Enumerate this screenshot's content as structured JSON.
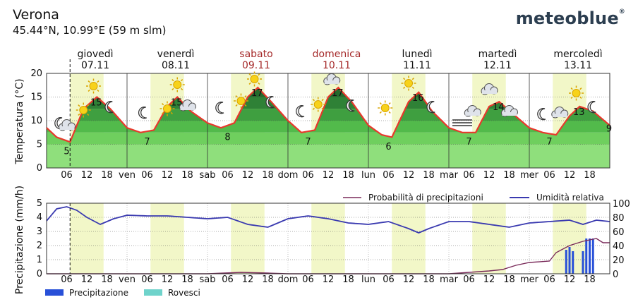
{
  "header": {
    "city": "Verona",
    "coords": "45.44°N, 10.99°E (59 m slm)",
    "brand": "meteoblue",
    "brand_mark": "®"
  },
  "days": [
    {
      "name": "giovedì",
      "date": "07.11",
      "weekend": false,
      "max": 15,
      "min": 5
    },
    {
      "name": "venerdì",
      "date": "08.11",
      "weekend": false,
      "max": 15,
      "min": 7
    },
    {
      "name": "sabato",
      "date": "09.11",
      "weekend": true,
      "max": 17,
      "min": 8
    },
    {
      "name": "domenica",
      "date": "10.11",
      "weekend": true,
      "max": 17,
      "min": 7
    },
    {
      "name": "lunedì",
      "date": "11.11",
      "weekend": false,
      "max": 16,
      "min": 6
    },
    {
      "name": "martedì",
      "date": "12.11",
      "weekend": false,
      "max": 14,
      "min": 7
    },
    {
      "name": "mercoledì",
      "date": "13.11",
      "weekend": false,
      "max": 13,
      "min": 7
    }
  ],
  "last_value": "9",
  "colors": {
    "weekend": "#a52a2a",
    "temp_line": "#e8382c",
    "daylight": "#f2f7c8",
    "precip": "#2850d8",
    "showers": "#6fd3cb",
    "humidity": "#3a3ab0",
    "probability": "#7a2a5a"
  },
  "chart_data": [
    {
      "type": "line",
      "ylabel": "Temperatura (°C)",
      "ylim": [
        0,
        20
      ],
      "yticks": [
        0,
        5,
        10,
        15,
        20
      ],
      "xlim_hours": [
        0,
        168
      ],
      "day_names_axis": [
        "",
        "ven",
        "sab",
        "dom",
        "lun",
        "mar",
        "mer"
      ],
      "hour_labels": [
        "06",
        "12",
        "18"
      ],
      "now_hour": 7,
      "series": [
        {
          "values": [
            [
              0,
              8.5
            ],
            [
              3,
              6.5
            ],
            [
              7,
              5.5
            ],
            [
              11,
              12.5
            ],
            [
              15,
              15
            ],
            [
              19,
              12.5
            ],
            [
              24,
              8.5
            ],
            [
              28,
              7.5
            ],
            [
              32,
              8
            ],
            [
              36,
              13
            ],
            [
              39,
              15
            ],
            [
              43,
              12
            ],
            [
              48,
              9.5
            ],
            [
              52,
              8.5
            ],
            [
              56,
              9.5
            ],
            [
              60,
              15
            ],
            [
              63,
              17
            ],
            [
              67,
              14
            ],
            [
              72,
              10
            ],
            [
              76,
              7.5
            ],
            [
              80,
              8
            ],
            [
              84,
              15
            ],
            [
              87,
              17
            ],
            [
              91,
              14
            ],
            [
              96,
              9
            ],
            [
              100,
              7
            ],
            [
              103,
              6.5
            ],
            [
              108,
              14
            ],
            [
              111,
              16
            ],
            [
              115,
              12
            ],
            [
              120,
              8.5
            ],
            [
              124,
              7.5
            ],
            [
              128,
              7.5
            ],
            [
              132,
              13
            ],
            [
              135,
              14
            ],
            [
              139,
              11.5
            ],
            [
              144,
              8.5
            ],
            [
              148,
              7.5
            ],
            [
              152,
              7
            ],
            [
              156,
              11
            ],
            [
              159,
              13
            ],
            [
              163,
              12
            ],
            [
              168,
              9
            ]
          ]
        }
      ]
    },
    {
      "type": "bar",
      "ylabel": "Precipitazione (mm/h)",
      "ylim": [
        0,
        5
      ],
      "yticks": [
        0,
        1,
        2,
        3,
        4,
        5
      ],
      "y2lim": [
        0,
        100
      ],
      "y2ticks": [
        0,
        20,
        40,
        60,
        80,
        100
      ],
      "legend": [
        "Probabilità di precipitazioni",
        "Umidità relativa"
      ],
      "bottom_legend": [
        "Precipitazione",
        "Rovesci"
      ],
      "series": [
        {
          "name": "Precipitazione",
          "values": [
            [
              155,
              1.7
            ],
            [
              156,
              1.9
            ],
            [
              157,
              1.6
            ],
            [
              160,
              1.6
            ],
            [
              161,
              2.5
            ],
            [
              162,
              2.5
            ],
            [
              163,
              2.5
            ]
          ]
        },
        {
          "name": "Rovesci",
          "values": []
        },
        {
          "name": "Umidità relativa",
          "values": [
            [
              0,
              75
            ],
            [
              3,
              92
            ],
            [
              6,
              95
            ],
            [
              9,
              90
            ],
            [
              12,
              80
            ],
            [
              16,
              70
            ],
            [
              20,
              78
            ],
            [
              24,
              83
            ],
            [
              30,
              82
            ],
            [
              36,
              82
            ],
            [
              42,
              80
            ],
            [
              48,
              78
            ],
            [
              54,
              80
            ],
            [
              60,
              70
            ],
            [
              66,
              66
            ],
            [
              72,
              78
            ],
            [
              78,
              82
            ],
            [
              84,
              78
            ],
            [
              90,
              72
            ],
            [
              96,
              70
            ],
            [
              102,
              74
            ],
            [
              108,
              64
            ],
            [
              111,
              58
            ],
            [
              114,
              64
            ],
            [
              120,
              74
            ],
            [
              126,
              74
            ],
            [
              132,
              70
            ],
            [
              138,
              66
            ],
            [
              144,
              72
            ],
            [
              150,
              74
            ],
            [
              156,
              76
            ],
            [
              160,
              70
            ],
            [
              164,
              76
            ],
            [
              168,
              74
            ]
          ]
        },
        {
          "name": "Probabilità di precipitazioni",
          "values": [
            [
              0,
              0
            ],
            [
              48,
              0
            ],
            [
              58,
              2
            ],
            [
              66,
              1
            ],
            [
              72,
              0
            ],
            [
              120,
              0
            ],
            [
              132,
              4
            ],
            [
              136,
              6
            ],
            [
              140,
              12
            ],
            [
              144,
              16
            ],
            [
              150,
              18
            ],
            [
              152,
              30
            ],
            [
              156,
              40
            ],
            [
              160,
              46
            ],
            [
              164,
              50
            ],
            [
              166,
              44
            ],
            [
              168,
              44
            ]
          ]
        }
      ]
    }
  ]
}
